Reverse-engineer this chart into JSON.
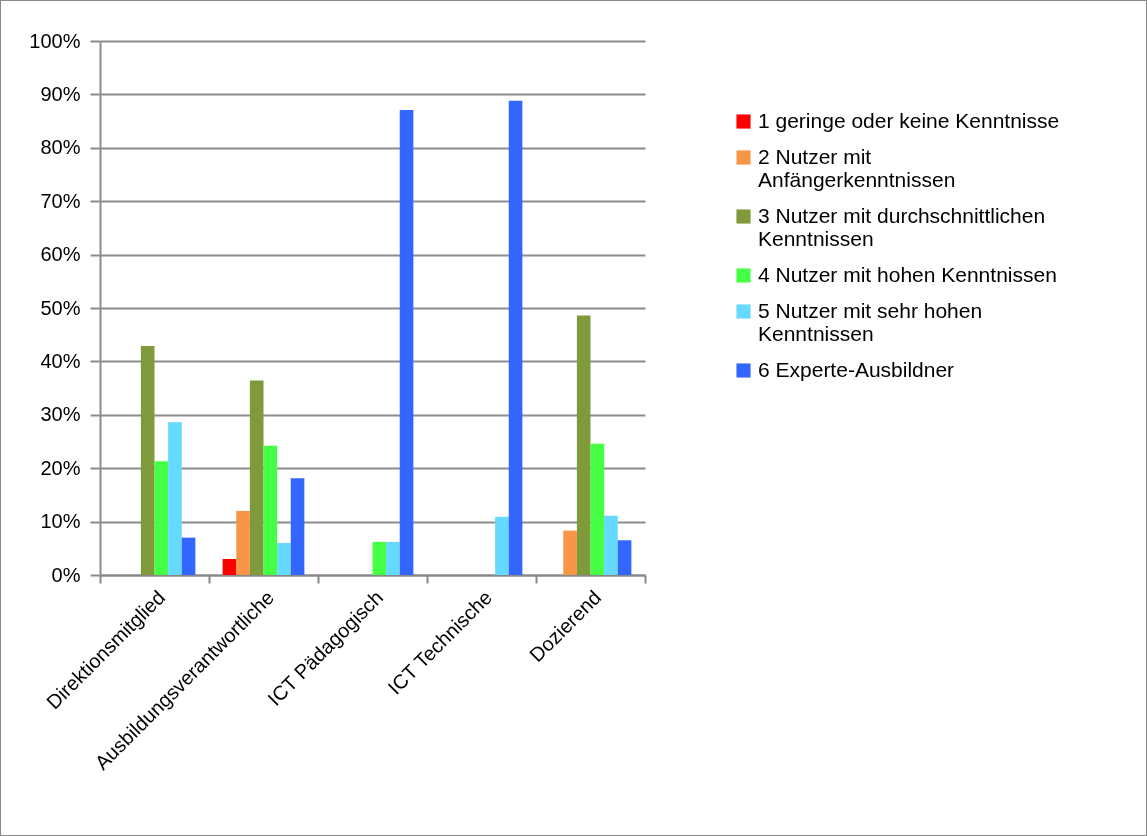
{
  "chart_data": {
    "type": "bar",
    "categories": [
      "Direktionsmitglied",
      "Ausbildungsverantwortliche",
      "ICT Pädagogisch",
      "ICT Technische",
      "Dozierend"
    ],
    "series": [
      {
        "name": "1 geringe oder keine Kenntnisse",
        "color": "#ff0000",
        "values": [
          null,
          3.0,
          null,
          null,
          null
        ]
      },
      {
        "name": "2 Nutzer mit Anfängerkenntnissen",
        "color": "#f79646",
        "values": [
          null,
          12.0,
          null,
          null,
          8.3
        ]
      },
      {
        "name": "3 Nutzer mit durchschnittlichen Kenntnissen",
        "color": "#7f9a3a",
        "values": [
          42.9,
          36.4,
          null,
          null,
          48.6
        ]
      },
      {
        "name": "4 Nutzer mit hohen Kenntnissen",
        "color": "#44ff44",
        "values": [
          21.3,
          24.2,
          6.2,
          null,
          24.6
        ]
      },
      {
        "name": "5 Nutzer mit sehr hohen Kenntnissen",
        "color": "#66d9ff",
        "values": [
          28.6,
          6.0,
          6.2,
          10.9,
          11.1
        ]
      },
      {
        "name": "6 Experte-Ausbildner",
        "color": "#3366ff",
        "values": [
          7.0,
          18.1,
          87.1,
          88.8,
          6.5
        ]
      }
    ],
    "ylim": [
      0,
      100
    ],
    "yticks": [
      {
        "value": 0,
        "label": "0%"
      },
      {
        "value": 10,
        "label": "10%"
      },
      {
        "value": 20,
        "label": "20%"
      },
      {
        "value": 30,
        "label": "30%"
      },
      {
        "value": 40,
        "label": "40%"
      },
      {
        "value": 50,
        "label": "50%"
      },
      {
        "value": 60,
        "label": "60%"
      },
      {
        "value": 70,
        "label": "70%"
      },
      {
        "value": 80,
        "label": "80%"
      },
      {
        "value": 90,
        "label": "90%"
      },
      {
        "value": 100,
        "label": "100%"
      }
    ],
    "grid": "y",
    "legend": "right"
  }
}
